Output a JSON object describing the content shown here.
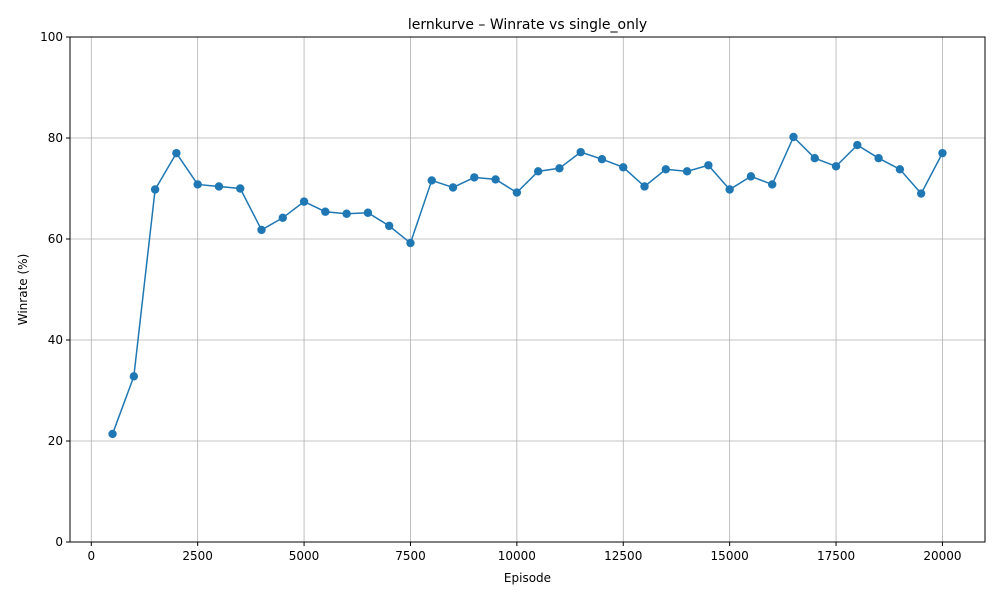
{
  "chart_data": {
    "type": "line",
    "title": "lernkurve – Winrate vs single_only",
    "xlabel": "Episode",
    "ylabel": "Winrate (%)",
    "xlim": [
      -500,
      21000
    ],
    "ylim": [
      0,
      100
    ],
    "xticks": [
      0,
      2500,
      5000,
      7500,
      10000,
      12500,
      15000,
      17500,
      20000
    ],
    "yticks": [
      0,
      20,
      40,
      60,
      80,
      100
    ],
    "grid": true,
    "line_color": "#1f77b4",
    "series": [
      {
        "x": [
          500,
          1000,
          1500,
          2000,
          2500,
          3000,
          3500,
          4000,
          4500,
          5000,
          5500,
          6000,
          6500,
          7000,
          7500,
          8000,
          8500,
          9000,
          9500,
          10000,
          10500,
          11000,
          11500,
          12000,
          12500,
          13000,
          13500,
          14000,
          14500,
          15000,
          15500,
          16000,
          16500,
          17000,
          17500,
          18000,
          18500,
          19000,
          19500,
          20000
        ],
        "values": [
          21.4,
          32.8,
          69.8,
          77.0,
          70.8,
          70.4,
          70.0,
          61.8,
          64.2,
          67.4,
          65.4,
          65.0,
          65.2,
          62.6,
          59.2,
          71.6,
          70.2,
          72.2,
          71.8,
          69.2,
          73.4,
          74.0,
          77.2,
          75.8,
          74.2,
          70.4,
          73.8,
          73.4,
          74.6,
          69.8,
          72.4,
          70.8,
          80.2,
          76.0,
          74.4,
          78.6,
          76.0,
          73.8,
          69.0,
          77.0
        ]
      }
    ]
  }
}
